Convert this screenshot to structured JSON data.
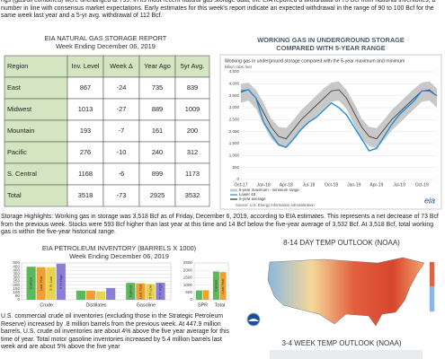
{
  "intro": "rigs (gas/oil combined) were unchanged at 799. In its most recent natural gas storage data, the EIA reported a withdrawal of 73 Bcf from national inventories, a number in line with consensus market expectations. Early estimates for this week's report indicate an expected withdrawal in the range of 90 to 100 Bcf for the same week last year and a 5-yr avg. withdrawal of 112 Bcf.",
  "storage_table": {
    "title": "EIA NATURAL GAS STORAGE REPORT",
    "subtitle": "Week Ending December 06, 2019",
    "columns": [
      "Region",
      "Inv. Level",
      "Week Δ",
      "Year Ago",
      "5yr Avg."
    ],
    "rows": [
      [
        "East",
        867,
        -24,
        735,
        839
      ],
      [
        "Midwest",
        1013,
        -27,
        889,
        1009
      ],
      [
        "Mountain",
        193,
        -7,
        161,
        200
      ],
      [
        "Pacific",
        276,
        -10,
        240,
        312
      ],
      [
        "S. Central",
        1168,
        -6,
        899,
        1173
      ],
      [
        "Total",
        3518,
        -73,
        2925,
        3532
      ]
    ]
  },
  "chart_data": [
    {
      "type": "line",
      "title": "WORKING GAS IN UNDERGROUND STORAGE COMPARED WITH 5-YEAR RANGE",
      "subtitle": "Working gas in underground storage compared with the 5-year maximum and minimum",
      "y_label": "billion cubic feet",
      "source": "Source: U.S. Energy Information Administration",
      "logo": "eia",
      "categories": [
        "Oct-17",
        null,
        null,
        "Jan-18",
        null,
        null,
        "Apr-18",
        null,
        null,
        "Jul-18",
        null,
        null,
        "Oct-18",
        null,
        null,
        "Jan-19",
        null,
        null,
        "Apr-19",
        null,
        null,
        "Jul-19",
        null,
        null,
        "Oct-19",
        null,
        null
      ],
      "range": {
        "name": "5-year maximum - minimum range",
        "color": "#c8c8c8",
        "high": [
          4000,
          4050,
          3750,
          3200,
          2550,
          2200,
          2150,
          2500,
          2900,
          3200,
          3500,
          3800,
          4050,
          4100,
          3750,
          3200,
          2550,
          2200,
          2150,
          2500,
          2900,
          3200,
          3500,
          3800,
          4050,
          4100,
          3800
        ],
        "low": [
          3200,
          3300,
          2950,
          2300,
          1700,
          1400,
          1300,
          1650,
          2050,
          2350,
          2650,
          2950,
          3250,
          3300,
          2950,
          2300,
          1700,
          1400,
          1300,
          1650,
          2050,
          2350,
          2650,
          2950,
          3250,
          3300,
          3000
        ]
      },
      "series": [
        {
          "name": "Lower 48",
          "color": "#1f8fd6",
          "values": [
            3700,
            3750,
            3400,
            2400,
            1900,
            1450,
            1350,
            1700,
            2100,
            2400,
            2600,
            2900,
            3200,
            3000,
            2700,
            2200,
            1700,
            1200,
            1300,
            1800,
            2300,
            2700,
            3000,
            3300,
            3700,
            3700,
            3500
          ]
        },
        {
          "name": "5-year average",
          "color": "#333333",
          "values": [
            3650,
            3750,
            3400,
            2800,
            2200,
            1800,
            1700,
            2100,
            2500,
            2800,
            3100,
            3400,
            3700,
            3750,
            3400,
            2800,
            2200,
            1800,
            1700,
            2100,
            2500,
            2800,
            3100,
            3400,
            3700,
            3750,
            3500
          ]
        }
      ],
      "ylim": [
        0,
        4500
      ],
      "yticks": [
        0,
        500,
        {
          "value": 1000,
          "label": "1,000"
        },
        {
          "value": 1500,
          "label": "1,500"
        },
        {
          "value": 2000,
          "label": "2,000"
        },
        {
          "value": 2500,
          "label": "2,500"
        },
        {
          "value": 3000,
          "label": "3,000"
        },
        {
          "value": 3500,
          "label": "3,500"
        },
        {
          "value": 4000,
          "label": "4,000"
        },
        {
          "value": 4500,
          "label": "4,500"
        }
      ],
      "grid": true
    },
    {
      "type": "bar",
      "title": "EIA PETROLEUM INVENTORY (BARRELS X 1000)",
      "subtitle": "Week Ending December 06, 2019",
      "categories": [
        "Crude",
        "Distillates",
        "Gasoline"
      ],
      "series": [
        {
          "name": "Current",
          "color": "#5cb85c",
          "values": [
            448,
            124,
            230
          ]
        },
        {
          "name": "Last Year",
          "color": "#f0a030",
          "values": [
            442,
            124,
            224
          ]
        },
        {
          "name": "5 Yr Low",
          "color": "#e8d44a",
          "values": [
            441,
            115,
            215
          ]
        },
        {
          "name": "5 Yr High",
          "color": "#8a7fd8",
          "values": [
            490,
            160,
            232
          ]
        }
      ],
      "ylim": [
        0,
        500
      ],
      "yticks": [
        0,
        50,
        100,
        150,
        200,
        250,
        300,
        350,
        400,
        450,
        500
      ],
      "grid": true
    },
    {
      "type": "bar",
      "categories": [
        "SPR",
        "Total"
      ],
      "series": [
        {
          "name": "Current",
          "color": "#5cb85c",
          "values": [
            635,
            1920
          ]
        },
        {
          "name": "Last Year",
          "color": "#f0a030",
          "values": [
            649,
            1880
          ]
        }
      ],
      "ylim": [
        0,
        2500
      ],
      "yticks": [
        0,
        500,
        1000,
        1500,
        2000,
        2500
      ],
      "grid": true
    }
  ],
  "highlights": "Storage Highlights: Working gas in storage was 3,518 Bcf as of Friday, December 6, 2019, according to EIA estimates. This represents a net decrease of 73 Bcf from the previous week. Stocks were 593 Bcf higher than last year at this time and 14 Bcf below the five-year average of 3,532 Bcf. At 3,518 Bcf, total working gas is within the five-year historical range.",
  "outlook": {
    "short": "8-14 DAY TEMP OUTLOOK (NOAA)",
    "long": "3-4 WEEK TEMP OUTLOOK (NOAA)"
  },
  "petroleum_text": "U.S. commercial crude oil inventories (excluding those in the Strategic Petroleum Reserve) increased by .8 million barrels from the previous week. At 447.9 million barrels, U.S. crude oil inventories are about 4% above the five year average for this time of year. Total motor gasoline inventories increased by 5.4 million barrels last week and are about 5% above the five year"
}
